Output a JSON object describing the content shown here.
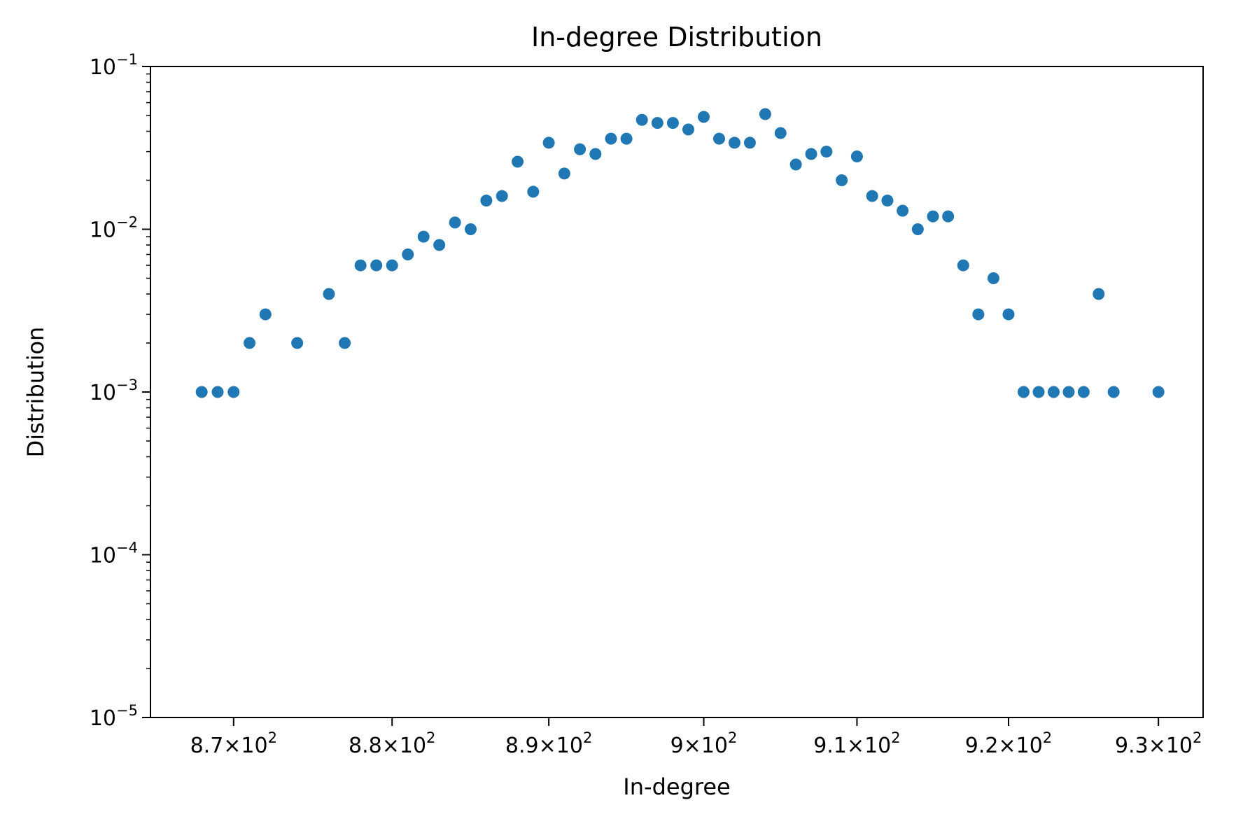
{
  "chart_data": {
    "type": "scatter",
    "title": "In-degree Distribution",
    "xlabel": "In-degree",
    "ylabel": "Distribution",
    "xscale": "log",
    "yscale": "log",
    "xlim": [
      864.8,
      933.0
    ],
    "ylim": [
      1e-05,
      0.1
    ],
    "grid": false,
    "marker_color": "#1f77b4",
    "x_ticks": [
      {
        "value": 870,
        "mantissa": "8.7",
        "base": "10",
        "exp": "2"
      },
      {
        "value": 880,
        "mantissa": "8.8",
        "base": "10",
        "exp": "2"
      },
      {
        "value": 890,
        "mantissa": "8.9",
        "base": "10",
        "exp": "2"
      },
      {
        "value": 900,
        "mantissa": "9",
        "base": "10",
        "exp": "2"
      },
      {
        "value": 910,
        "mantissa": "9.1",
        "base": "10",
        "exp": "2"
      },
      {
        "value": 920,
        "mantissa": "9.2",
        "base": "10",
        "exp": "2"
      },
      {
        "value": 930,
        "mantissa": "9.3",
        "base": "10",
        "exp": "2"
      }
    ],
    "y_ticks": [
      {
        "value": 1e-05,
        "base": "10",
        "exp": "−5"
      },
      {
        "value": 0.0001,
        "base": "10",
        "exp": "−4"
      },
      {
        "value": 0.001,
        "base": "10",
        "exp": "−3"
      },
      {
        "value": 0.01,
        "base": "10",
        "exp": "−2"
      },
      {
        "value": 0.1,
        "base": "10",
        "exp": "−1"
      }
    ],
    "points": [
      [
        868,
        0.001
      ],
      [
        869,
        0.001
      ],
      [
        870,
        0.001
      ],
      [
        871,
        0.002
      ],
      [
        872,
        0.003
      ],
      [
        874,
        0.002
      ],
      [
        876,
        0.004
      ],
      [
        877,
        0.002
      ],
      [
        878,
        0.006
      ],
      [
        879,
        0.006
      ],
      [
        880,
        0.006
      ],
      [
        881,
        0.007
      ],
      [
        882,
        0.009
      ],
      [
        883,
        0.008
      ],
      [
        884,
        0.011
      ],
      [
        885,
        0.01
      ],
      [
        886,
        0.015
      ],
      [
        887,
        0.016
      ],
      [
        888,
        0.026
      ],
      [
        889,
        0.017
      ],
      [
        890,
        0.034
      ],
      [
        891,
        0.022
      ],
      [
        892,
        0.031
      ],
      [
        893,
        0.029
      ],
      [
        894,
        0.036
      ],
      [
        895,
        0.036
      ],
      [
        896,
        0.047
      ],
      [
        897,
        0.045
      ],
      [
        898,
        0.045
      ],
      [
        899,
        0.041
      ],
      [
        900,
        0.049
      ],
      [
        901,
        0.036
      ],
      [
        902,
        0.034
      ],
      [
        903,
        0.034
      ],
      [
        904,
        0.051
      ],
      [
        905,
        0.039
      ],
      [
        906,
        0.025
      ],
      [
        907,
        0.029
      ],
      [
        908,
        0.03
      ],
      [
        909,
        0.02
      ],
      [
        910,
        0.028
      ],
      [
        911,
        0.016
      ],
      [
        912,
        0.015
      ],
      [
        913,
        0.013
      ],
      [
        914,
        0.01
      ],
      [
        915,
        0.012
      ],
      [
        916,
        0.012
      ],
      [
        917,
        0.006
      ],
      [
        918,
        0.003
      ],
      [
        919,
        0.005
      ],
      [
        920,
        0.003
      ],
      [
        921,
        0.001
      ],
      [
        922,
        0.001
      ],
      [
        923,
        0.001
      ],
      [
        924,
        0.001
      ],
      [
        925,
        0.001
      ],
      [
        926,
        0.004
      ],
      [
        927,
        0.001
      ],
      [
        930,
        0.001
      ]
    ]
  }
}
